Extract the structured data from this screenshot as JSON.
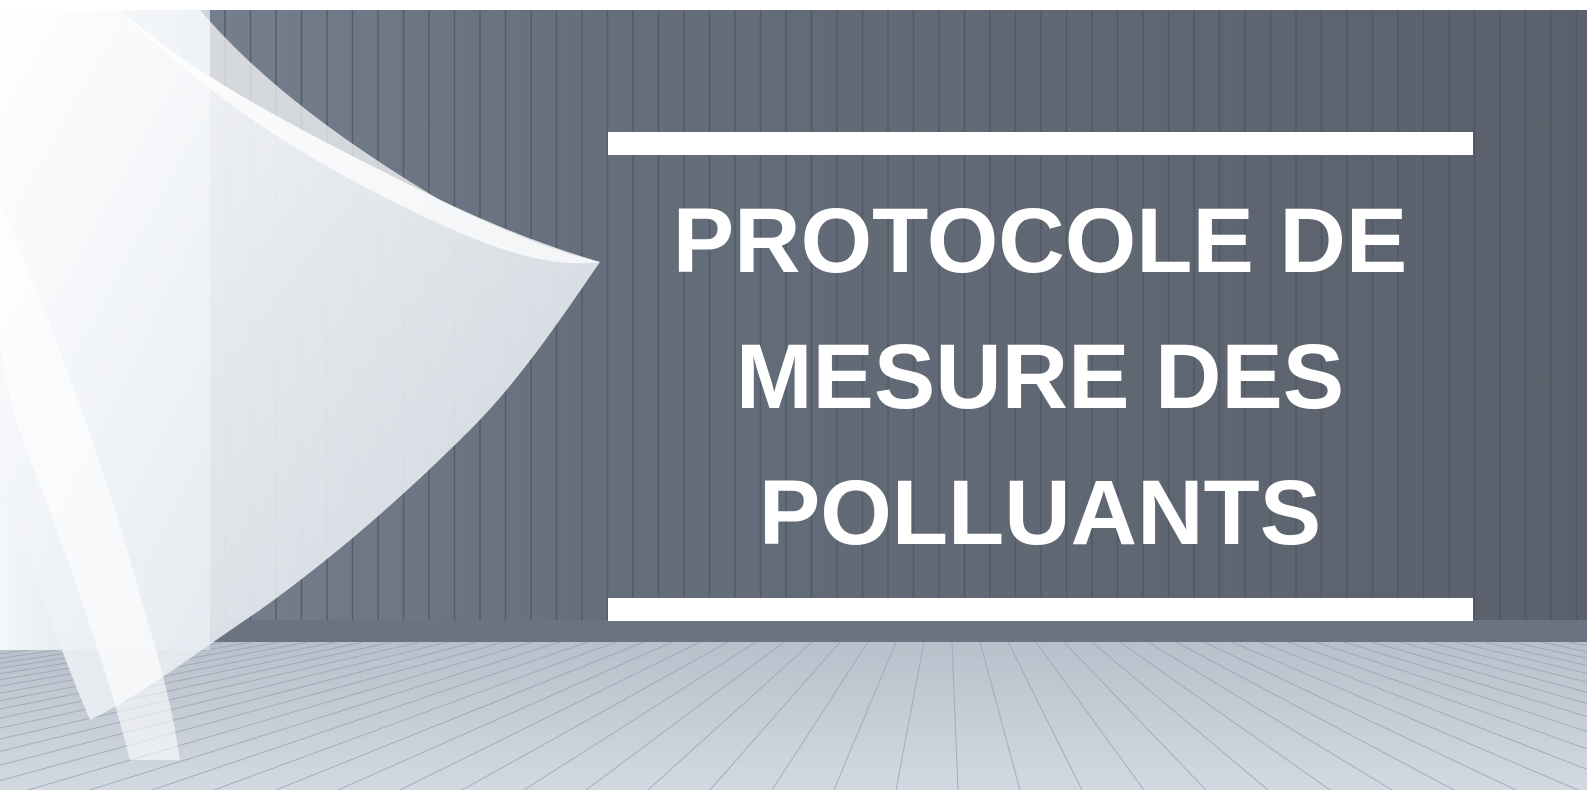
{
  "title": {
    "lines": [
      "PROTOCOLE DE",
      "MESURE DES",
      "POLLUANTS"
    ]
  }
}
